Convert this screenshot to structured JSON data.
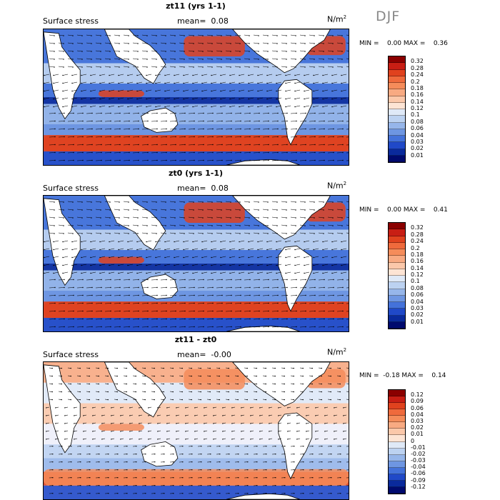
{
  "season": "DJF",
  "units": "N/m",
  "units_exp": "2",
  "panels": [
    {
      "title": "zt11 (yrs 1-1)",
      "subtitle": "Surface stress",
      "mean_label": "mean=",
      "mean_value": "0.08",
      "minmax": "MIN =    0.00 MAX =    0.36",
      "colorbar": {
        "labels": [
          "0.32",
          "0.28",
          "0.24",
          "0.2",
          "0.18",
          "0.16",
          "0.14",
          "0.12",
          "0.1",
          "0.08",
          "0.06",
          "0.04",
          "0.03",
          "0.02",
          "0.01"
        ],
        "colors": [
          "#8b0000",
          "#c81e14",
          "#e0421e",
          "#ef6a3c",
          "#f58c5a",
          "#f8aa82",
          "#fbc8aa",
          "#fde4d4",
          "#dfe9f7",
          "#bcd2f1",
          "#96b6ea",
          "#6e96e2",
          "#4472da",
          "#2049c8",
          "#0a2a9c",
          "#000a6e"
        ]
      }
    },
    {
      "title": "zt0 (yrs 1-1)",
      "subtitle": "Surface stress",
      "mean_label": "mean=",
      "mean_value": "0.08",
      "minmax": "MIN =    0.00 MAX =    0.41",
      "colorbar": {
        "labels": [
          "0.32",
          "0.28",
          "0.24",
          "0.2",
          "0.18",
          "0.16",
          "0.14",
          "0.12",
          "0.1",
          "0.08",
          "0.06",
          "0.04",
          "0.03",
          "0.02",
          "0.01"
        ],
        "colors": [
          "#8b0000",
          "#c81e14",
          "#e0421e",
          "#ef6a3c",
          "#f58c5a",
          "#f8aa82",
          "#fbc8aa",
          "#fde4d4",
          "#dfe9f7",
          "#bcd2f1",
          "#96b6ea",
          "#6e96e2",
          "#4472da",
          "#2049c8",
          "#0a2a9c",
          "#000a6e"
        ]
      }
    },
    {
      "title": "zt11 - zt0",
      "subtitle": "Surface stress",
      "mean_label": "mean=",
      "mean_value": "-0.00",
      "minmax": "MIN =  -0.18 MAX =    0.14",
      "colorbar": {
        "labels": [
          "0.12",
          "0.09",
          "0.06",
          "0.04",
          "0.03",
          "0.02",
          "0.01",
          "0",
          "-0.01",
          "-0.02",
          "-0.03",
          "-0.04",
          "-0.06",
          "-0.09",
          "-0.12"
        ],
        "colors": [
          "#8b0000",
          "#c81e14",
          "#e0421e",
          "#ef6a3c",
          "#f58c5a",
          "#f8aa82",
          "#fbc8aa",
          "#fde4d4",
          "#dfe9f7",
          "#bcd2f1",
          "#96b6ea",
          "#6e96e2",
          "#4472da",
          "#2049c8",
          "#0a2a9c",
          "#000a6e"
        ]
      }
    }
  ]
}
